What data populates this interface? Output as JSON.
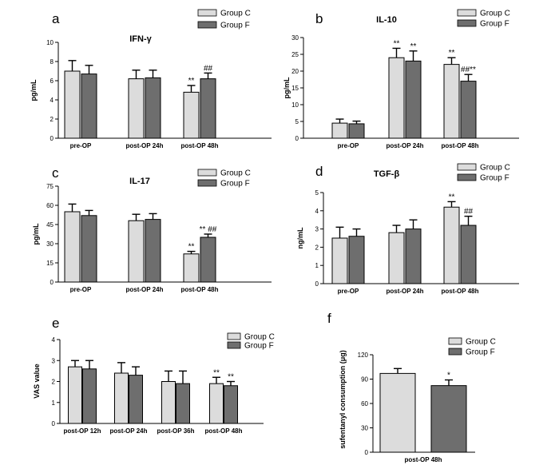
{
  "colors": {
    "group_c": "#dcdcdc",
    "group_f": "#6e6e6e",
    "axis": "#000000"
  },
  "chart_data": [
    {
      "id": "a",
      "letter": "a",
      "type": "bar",
      "title": "IFN-γ",
      "ylabel": "pg/mL",
      "ylim": [
        0,
        10
      ],
      "yticks": [
        0,
        2,
        4,
        6,
        8,
        10
      ],
      "categories": [
        "pre-OP",
        "post-OP 24h",
        "post-OP 48h"
      ],
      "series": [
        {
          "name": "Group C",
          "values": [
            7.0,
            6.2,
            4.8
          ],
          "errors": [
            1.1,
            0.9,
            0.7
          ],
          "annotations": [
            "",
            "",
            "**"
          ]
        },
        {
          "name": "Group F",
          "values": [
            6.7,
            6.3,
            6.2
          ],
          "errors": [
            0.9,
            0.8,
            0.6
          ],
          "annotations": [
            "",
            "",
            "##"
          ]
        }
      ]
    },
    {
      "id": "b",
      "letter": "b",
      "type": "bar",
      "title": "IL-10",
      "ylabel": "pg/mL",
      "ylim": [
        0,
        30
      ],
      "yticks": [
        0,
        5,
        10,
        15,
        20,
        25,
        30
      ],
      "categories": [
        "pre-OP",
        "post-OP 24h",
        "post-OP 48h"
      ],
      "series": [
        {
          "name": "Group C",
          "values": [
            4.5,
            24.0,
            22.0
          ],
          "errors": [
            1.2,
            2.8,
            2.0
          ],
          "annotations": [
            "",
            "**",
            "**"
          ]
        },
        {
          "name": "Group F",
          "values": [
            4.3,
            23.0,
            17.0
          ],
          "errors": [
            0.8,
            3.0,
            2.0
          ],
          "annotations": [
            "",
            "**",
            "##**"
          ]
        }
      ]
    },
    {
      "id": "c",
      "letter": "c",
      "type": "bar",
      "title": "IL-17",
      "ylabel": "pg/mL",
      "ylim": [
        0,
        75
      ],
      "yticks": [
        0,
        15,
        30,
        45,
        60,
        75
      ],
      "categories": [
        "pre-OP",
        "post-OP 24h",
        "post-OP 48h"
      ],
      "series": [
        {
          "name": "Group C",
          "values": [
            55,
            48,
            22
          ],
          "errors": [
            6,
            5,
            2
          ],
          "annotations": [
            "",
            "",
            "**"
          ]
        },
        {
          "name": "Group F",
          "values": [
            52,
            49,
            35
          ],
          "errors": [
            4,
            4.5,
            2.5
          ],
          "annotations": [
            "",
            "",
            "** ##"
          ]
        }
      ]
    },
    {
      "id": "d",
      "letter": "d",
      "type": "bar",
      "title": "TGF-β",
      "ylabel": "ng/mL",
      "ylim": [
        0,
        5
      ],
      "yticks": [
        0,
        1,
        2,
        3,
        4,
        5
      ],
      "categories": [
        "pre-OP",
        "post-OP 24h",
        "post-OP 48h"
      ],
      "series": [
        {
          "name": "Group C",
          "values": [
            2.5,
            2.8,
            4.2
          ],
          "errors": [
            0.6,
            0.4,
            0.3
          ],
          "annotations": [
            "",
            "",
            "**"
          ]
        },
        {
          "name": "Group F",
          "values": [
            2.6,
            3.0,
            3.2
          ],
          "errors": [
            0.4,
            0.5,
            0.5
          ],
          "annotations": [
            "",
            "",
            "##"
          ]
        }
      ]
    },
    {
      "id": "e",
      "letter": "e",
      "type": "bar",
      "title": "",
      "ylabel": "VAS value",
      "ylim": [
        0,
        4
      ],
      "yticks": [
        0,
        1,
        2,
        3,
        4
      ],
      "categories": [
        "post-OP 12h",
        "post-OP 24h",
        "post-OP 36h",
        "post-OP 48h"
      ],
      "series": [
        {
          "name": "Group C",
          "values": [
            2.7,
            2.4,
            2.0,
            1.9
          ],
          "errors": [
            0.3,
            0.5,
            0.5,
            0.3
          ],
          "annotations": [
            "",
            "",
            "",
            "**"
          ]
        },
        {
          "name": "Group F",
          "values": [
            2.6,
            2.3,
            1.9,
            1.8
          ],
          "errors": [
            0.4,
            0.4,
            0.6,
            0.2
          ],
          "annotations": [
            "",
            "",
            "",
            "**"
          ]
        }
      ]
    },
    {
      "id": "f",
      "letter": "f",
      "type": "bar",
      "title": "",
      "ylabel": "sufentanyl consumption (μg)",
      "ylim": [
        0,
        120
      ],
      "yticks": [
        0,
        30,
        60,
        90,
        120
      ],
      "categories": [
        "post-OP 48h"
      ],
      "series": [
        {
          "name": "Group C",
          "values": [
            97
          ],
          "errors": [
            6
          ],
          "annotations": [
            ""
          ]
        },
        {
          "name": "Group F",
          "values": [
            82
          ],
          "errors": [
            7
          ],
          "annotations": [
            "*"
          ]
        }
      ]
    }
  ]
}
